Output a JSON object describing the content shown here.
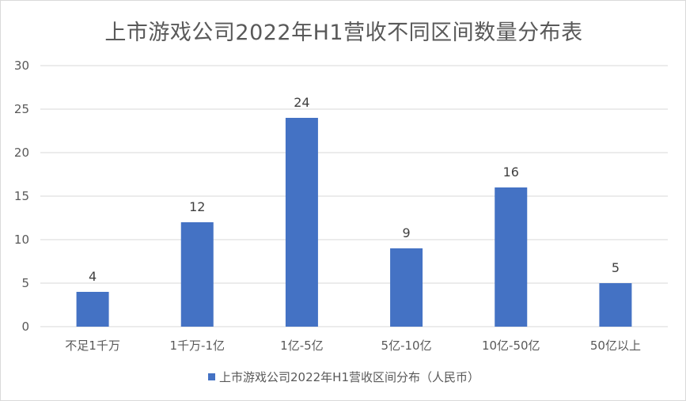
{
  "chart_data": {
    "type": "bar",
    "title": "上市游戏公司2022年H1营收不同区间数量分布表",
    "categories": [
      "不足1千万",
      "1千万-1亿",
      "1亿-5亿",
      "5亿-10亿",
      "10亿-50亿",
      "50亿以上"
    ],
    "series": [
      {
        "name": "上市游戏公司2022年H1营收区间分布（人民币）",
        "values": [
          4,
          12,
          24,
          9,
          16,
          5
        ]
      }
    ],
    "ylim": [
      0,
      30
    ],
    "yticks": [
      0,
      5,
      10,
      15,
      20,
      25,
      30
    ],
    "xlabel": "",
    "ylabel": "",
    "grid": true,
    "legend": "bottom",
    "data_labels": true
  },
  "colors": {
    "bar": "#4472c4",
    "grid": "#d9d9d9",
    "text": "#595959"
  }
}
